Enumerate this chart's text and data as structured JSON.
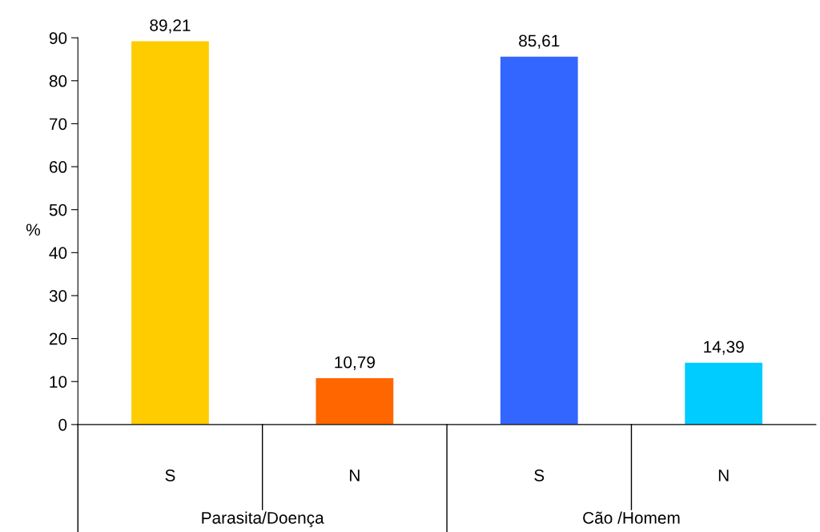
{
  "chart_data": {
    "type": "bar",
    "ylabel": "%",
    "categories": [
      "S",
      "N",
      "S",
      "N"
    ],
    "values": [
      89.21,
      10.79,
      85.61,
      14.39
    ],
    "colors": [
      "#ffcc00",
      "#ff6600",
      "#3366ff",
      "#00ccff"
    ],
    "value_labels": [
      "89,21",
      "10,79",
      "85,61",
      "14,39"
    ],
    "ylim": [
      0,
      90
    ],
    "yticks": [
      0,
      10,
      20,
      30,
      40,
      50,
      60,
      70,
      80,
      90
    ],
    "annotations": [
      "Parasita/Doença",
      "Cão /Homem"
    ],
    "grid": false,
    "legend": false
  }
}
